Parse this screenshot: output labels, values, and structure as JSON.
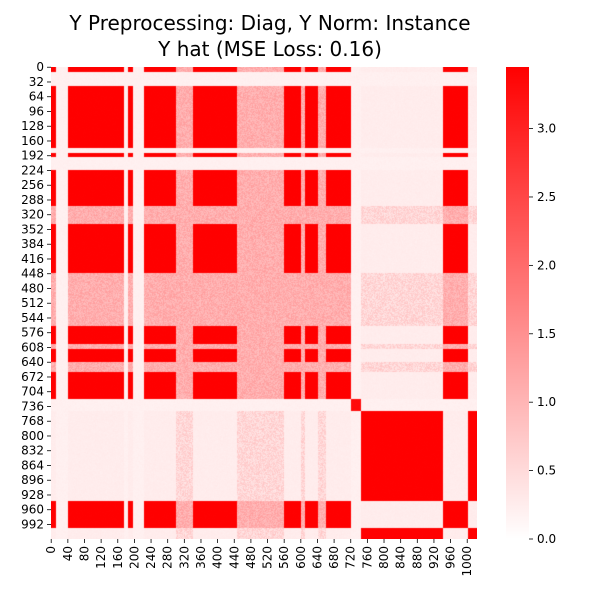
{
  "chart_data": {
    "type": "heatmap",
    "title_lines": [
      "Y Preprocessing: Diag, Y Norm: Instance",
      "Y hat (MSE Loss: 0.16)"
    ],
    "matrix_size": 1024,
    "y_tick_labels": [
      "0",
      "32",
      "64",
      "96",
      "128",
      "160",
      "192",
      "224",
      "256",
      "288",
      "320",
      "352",
      "384",
      "416",
      "448",
      "480",
      "512",
      "544",
      "576",
      "608",
      "640",
      "672",
      "704",
      "736",
      "768",
      "800",
      "832",
      "864",
      "896",
      "928",
      "960",
      "992"
    ],
    "x_tick_labels": [
      "0",
      "40",
      "80",
      "120",
      "160",
      "200",
      "240",
      "280",
      "320",
      "360",
      "400",
      "440",
      "480",
      "520",
      "560",
      "600",
      "640",
      "680",
      "720",
      "760",
      "800",
      "840",
      "880",
      "920",
      "960",
      "1000"
    ],
    "colorbar": {
      "min": 0.0,
      "max": 3.45,
      "ticks": [
        0.0,
        0.5,
        1.0,
        1.5,
        2.0,
        2.5,
        3.0
      ],
      "tick_labels": [
        "0.0",
        "0.5",
        "1.0",
        "1.5",
        "2.0",
        "2.5",
        "3.0"
      ],
      "color_low": "#ffffff",
      "color_high": "#ff0000"
    },
    "block_groups": {
      "group_A": [
        [
          0,
          10
        ],
        [
          40,
          175
        ],
        [
          185,
          195
        ],
        [
          222,
          300
        ],
        [
          340,
          445
        ],
        [
          560,
          600
        ],
        [
          610,
          640
        ],
        [
          660,
          720
        ],
        [
          930,
          1000
        ]
      ],
      "group_B": [
        [
          745,
          940
        ],
        [
          1000,
          1024
        ]
      ],
      "group_C": [
        [
          300,
          340
        ],
        [
          445,
          560
        ],
        [
          600,
          610
        ],
        [
          640,
          660
        ]
      ],
      "group_D": [
        [
          720,
          745
        ]
      ]
    },
    "group_values": {
      "A_A": 3.45,
      "B_B": 3.45,
      "A_B": 0.25,
      "C_C": 1.1,
      "C_A": 1.1,
      "C_B": 0.55,
      "D_D": 3.3,
      "D_other": 0.2
    },
    "accent_colors": {
      "high": "#ff0000",
      "low": "#ffffff"
    }
  }
}
